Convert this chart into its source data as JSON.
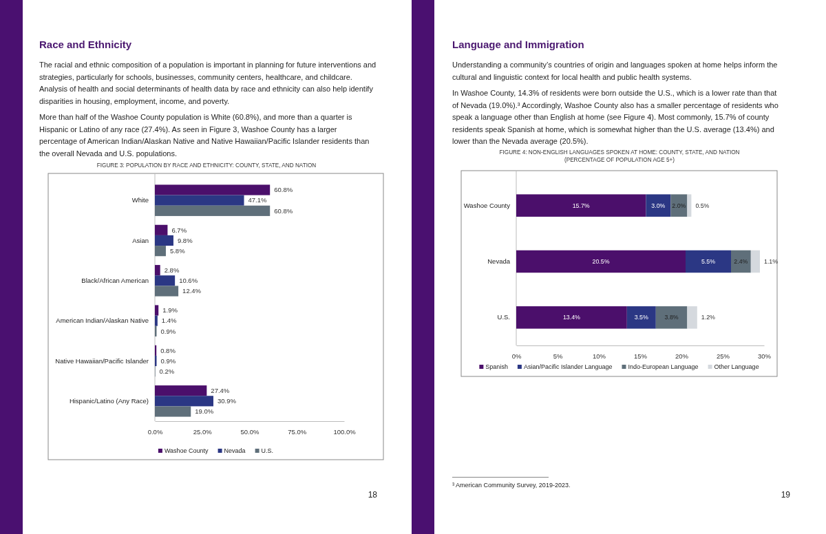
{
  "chart_data": [
    {
      "type": "bar",
      "orientation": "horizontal",
      "title": "Race and Ethnicity",
      "subtitle": "FIGURE 3: POPULATION BY RACE AND ETHNICITY: COUNTY, STATE, AND NATION",
      "annotations": [
        "The racial and ethnic composition of a population is important in planning for future interventions and strategies, particularly for schools, businesses, community centers, healthcare, and childcare. Analysis of health and social determinants of health data by race and ethnicity can also help identify disparities in housing, employment, income, and poverty.",
        "More than half of the Washoe County population is White (60.8%), and more than a quarter is Hispanic or Latino of any race (27.4%). As seen in Figure 3, Washoe County has a larger percentage of American Indian/Alaskan Native and Native Hawaiian/Pacific Islander residents than the overall Nevada and U.S. populations.",
        "18"
      ],
      "categories": [
        "White",
        "Asian",
        "Black/African American",
        "American Indian/Alaskan Native",
        "Native Hawaiian/Pacific Islander",
        "Hispanic/Latino (Any Race)"
      ],
      "series": [
        {
          "name": "Washoe County",
          "color": "#4b0f6b",
          "values": [
            60.8,
            6.7,
            2.8,
            1.9,
            0.8,
            27.4
          ],
          "value_labels": [
            "60.8%",
            "6.7%",
            "2.8%",
            "1.9%",
            "0.8%",
            "27.4%"
          ]
        },
        {
          "name": "Nevada",
          "color": "#2b3784",
          "values": [
            47.1,
            9.8,
            10.6,
            1.4,
            0.9,
            30.9
          ],
          "value_labels": [
            "47.1%",
            "9.8%",
            "10.6%",
            "1.4%",
            "0.9%",
            "30.9%"
          ]
        },
        {
          "name": "U.S.",
          "color": "#5f6f7a",
          "values": [
            60.8,
            5.8,
            12.4,
            0.9,
            0.2,
            19.0
          ],
          "value_labels": [
            "60.8%",
            "5.8%",
            "12.4%",
            "0.9%",
            "0.2%",
            "19.0%"
          ]
        }
      ],
      "xlim": [
        0,
        100
      ],
      "xticks": [
        {
          "value": 0,
          "label": "0.0%"
        },
        {
          "value": 25,
          "label": "25.0%"
        },
        {
          "value": 50,
          "label": "50.0%"
        },
        {
          "value": 75,
          "label": "75.0%"
        },
        {
          "value": 100,
          "label": "100.0%"
        }
      ],
      "legend": "bottom"
    },
    {
      "type": "bar",
      "orientation": "horizontal",
      "stacked": true,
      "title": "Language and Immigration",
      "subtitle": "FIGURE 4: NON-ENGLISH LANGUAGES SPOKEN AT HOME: COUNTY, STATE, AND NATION\n(PERCENTAGE OF POPULATION AGE 5+)",
      "annotations": [
        "Understanding a community’s countries of origin and languages spoken at home helps inform the cultural and linguistic context for local health and public health systems.",
        "In Washoe County, 14.3% of residents were born outside the U.S., which is a lower rate than that of Nevada (19.0%).³ Accordingly, Washoe County also has a smaller percentage of residents who speak a language other than English at home (see Figure 4). Most commonly, 15.7% of county residents speak Spanish at home, which is somewhat higher than the U.S. average (13.4%) and lower than the Nevada average (20.5%).",
        "³ American Community Survey, 2019-2023.",
        "19"
      ],
      "categories": [
        "Washoe County",
        "Nevada",
        "U.S."
      ],
      "series": [
        {
          "name": "Spanish",
          "color": "#4b0f6b",
          "values": [
            15.7,
            20.5,
            13.4
          ],
          "value_labels": [
            "15.7%",
            "20.5%",
            "13.4%"
          ]
        },
        {
          "name": "Asian/Pacific Islander Language",
          "color": "#2b3784",
          "values": [
            3.0,
            5.5,
            3.5
          ],
          "value_labels": [
            "3.0%",
            "5.5%",
            "3.5%"
          ]
        },
        {
          "name": "Indo-European Language",
          "color": "#5f6f7a",
          "values": [
            2.0,
            2.4,
            3.8
          ],
          "value_labels": [
            "2.0%",
            "2.4%",
            "3.8%"
          ]
        },
        {
          "name": "Other Language",
          "color": "#d5d9de",
          "values": [
            0.5,
            1.1,
            1.2
          ],
          "value_labels": [
            "0.5%",
            "1.1%",
            "1.2%"
          ]
        }
      ],
      "xlim": [
        0,
        30
      ],
      "xticks": [
        {
          "value": 0,
          "label": "0%"
        },
        {
          "value": 5,
          "label": "5%"
        },
        {
          "value": 10,
          "label": "10%"
        },
        {
          "value": 15,
          "label": "15%"
        },
        {
          "value": 20,
          "label": "20%"
        },
        {
          "value": 25,
          "label": "25%"
        },
        {
          "value": 30,
          "label": "30%"
        }
      ],
      "legend": "bottom"
    }
  ]
}
